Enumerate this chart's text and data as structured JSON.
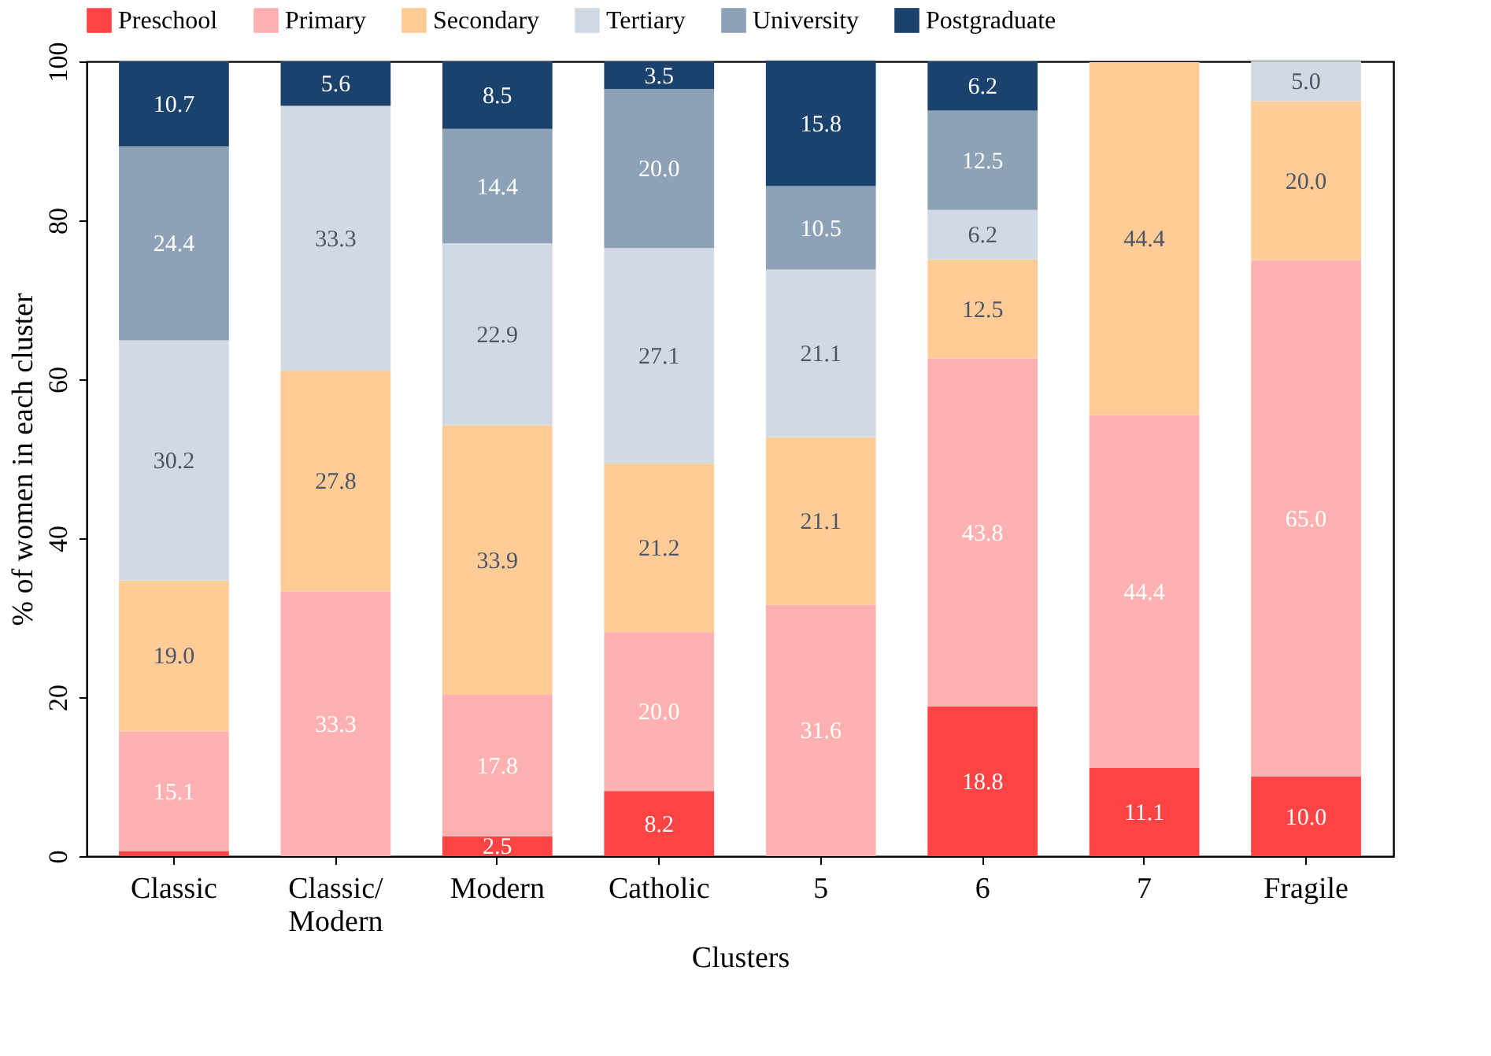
{
  "chart_data": {
    "type": "bar",
    "stacked": true,
    "xlabel": "Clusters",
    "ylabel": "% of women in each cluster",
    "categories": [
      "Classic",
      "Classic/\nModern",
      "Modern",
      "Catholic",
      "5",
      "6",
      "7",
      "Fragile"
    ],
    "series": [
      {
        "name": "Preschool",
        "color": "#fc4445",
        "values": [
          0.6,
          0,
          2.5,
          8.2,
          0,
          18.8,
          11.1,
          10.0
        ],
        "value_labels": [
          null,
          null,
          "2.5",
          "8.2",
          null,
          "18.8",
          "11.1",
          "10.0"
        ]
      },
      {
        "name": "Primary",
        "color": "#ffb1b1",
        "values": [
          15.1,
          33.3,
          17.8,
          20.0,
          31.6,
          43.8,
          44.4,
          65.0
        ],
        "value_labels": [
          "15.1",
          "33.3",
          "17.8",
          "20.0",
          "31.6",
          "43.8",
          "44.4",
          "65.0"
        ]
      },
      {
        "name": "Secondary",
        "color": "#ffcb96",
        "values": [
          19.0,
          27.8,
          33.9,
          21.2,
          21.1,
          12.5,
          44.4,
          20.0
        ],
        "value_labels": [
          "19.0",
          "27.8",
          "33.9",
          "21.2",
          "21.1",
          "12.5",
          "44.4",
          "20.0"
        ]
      },
      {
        "name": "Tertiary",
        "color": "#d1d9e3",
        "values": [
          30.2,
          33.3,
          22.9,
          27.1,
          21.1,
          6.2,
          0,
          5.0
        ],
        "value_labels": [
          "30.2",
          "33.3",
          "22.9",
          "27.1",
          "21.1",
          "6.2",
          null,
          "5.0"
        ]
      },
      {
        "name": "University",
        "color": "#8ea2b7",
        "values": [
          24.4,
          0,
          14.4,
          20.0,
          10.5,
          12.5,
          0,
          0
        ],
        "value_labels": [
          "24.4",
          null,
          "14.4",
          "20.0",
          "10.5",
          "12.5",
          null,
          null
        ]
      },
      {
        "name": "Postgraduate",
        "color": "#1b426c",
        "values": [
          10.7,
          5.6,
          8.5,
          3.5,
          15.8,
          6.2,
          0,
          0
        ],
        "value_labels": [
          "10.7",
          "5.6",
          "8.5",
          "3.5",
          "15.8",
          "6.2",
          null,
          null
        ]
      }
    ],
    "ylim": [
      0,
      100
    ],
    "yticks": [
      0,
      20,
      40,
      60,
      80,
      100
    ],
    "grid": false,
    "legend": "top"
  }
}
